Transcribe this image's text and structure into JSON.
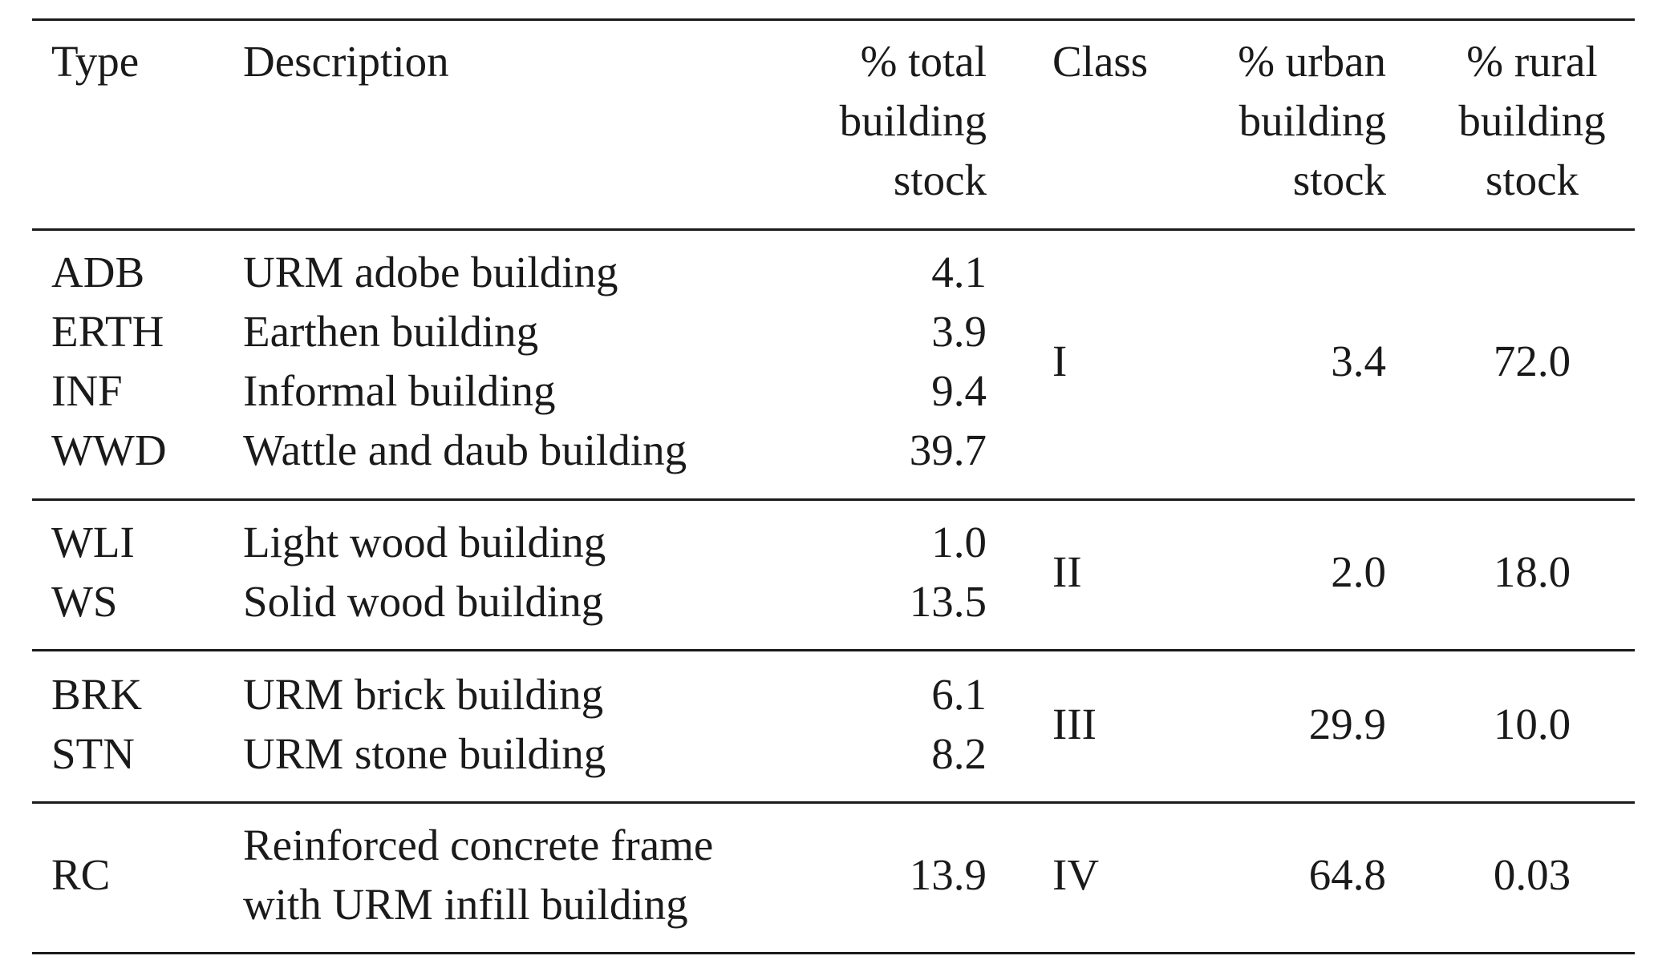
{
  "headers": {
    "type": "Type",
    "description": "Description",
    "total_l1": "% total",
    "total_l2": "building",
    "total_l3": "stock",
    "class": "Class",
    "urban_l1": "% urban",
    "urban_l2": "building",
    "urban_l3": "stock",
    "rural_l1": "% rural",
    "rural_l2": "building",
    "rural_l3": "stock"
  },
  "groups": [
    {
      "class": "I",
      "urban": "3.4",
      "rural": "72.0",
      "rows": [
        {
          "type": "ADB",
          "description": "URM adobe building",
          "total": "4.1"
        },
        {
          "type": "ERTH",
          "description": "Earthen building",
          "total": "3.9"
        },
        {
          "type": "INF",
          "description": "Informal building",
          "total": "9.4"
        },
        {
          "type": "WWD",
          "description": "Wattle and daub building",
          "total": "39.7"
        }
      ]
    },
    {
      "class": "II",
      "urban": "2.0",
      "rural": "18.0",
      "rows": [
        {
          "type": "WLI",
          "description": "Light wood building",
          "total": "1.0"
        },
        {
          "type": "WS",
          "description": "Solid wood building",
          "total": "13.5"
        }
      ]
    },
    {
      "class": "III",
      "urban": "29.9",
      "rural": "10.0",
      "rows": [
        {
          "type": "BRK",
          "description": "URM brick building",
          "total": "6.1"
        },
        {
          "type": "STN",
          "description": "URM stone building",
          "total": "8.2"
        }
      ]
    },
    {
      "class": "IV",
      "urban": "64.8",
      "rural": "0.03",
      "rows": [
        {
          "type": "RC",
          "description_l1": "Reinforced concrete frame",
          "description_l2": "with URM infill building",
          "total": "13.9"
        }
      ]
    }
  ]
}
